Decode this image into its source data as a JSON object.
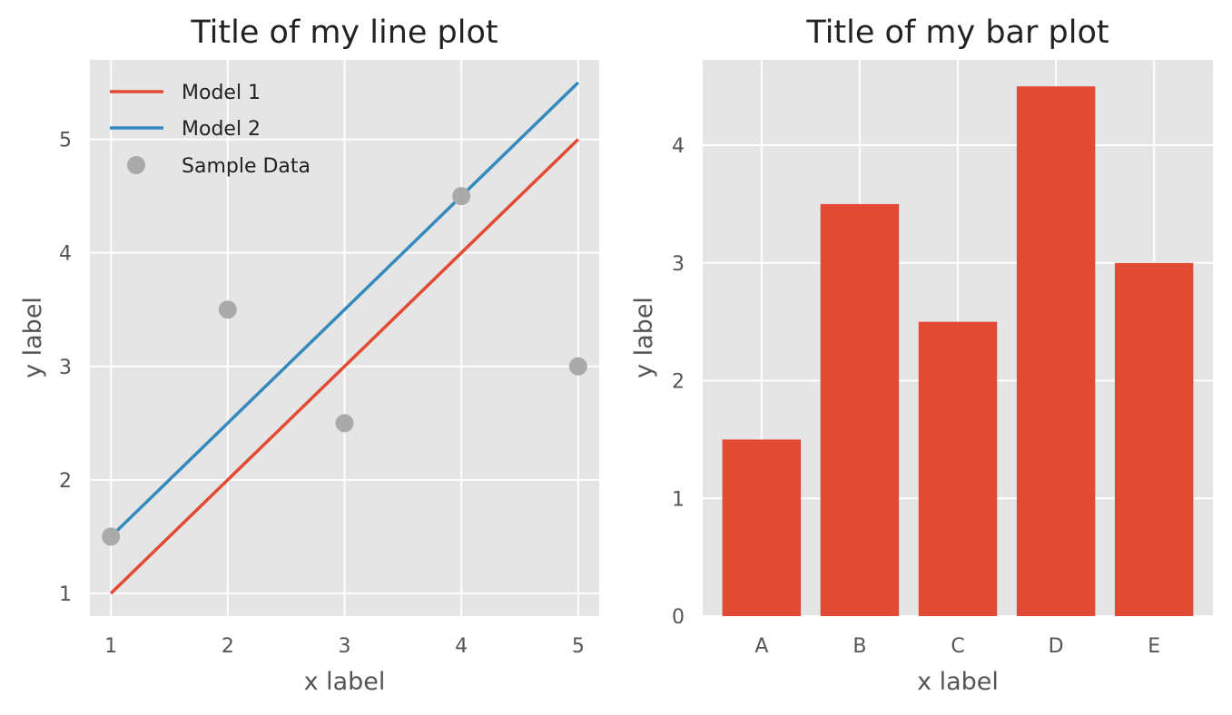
{
  "chart_data": [
    {
      "type": "line",
      "title": "Title of my line plot",
      "xlabel": "x label",
      "ylabel": "y label",
      "xlim": [
        0.82,
        5.18
      ],
      "ylim": [
        0.8,
        5.7
      ],
      "xticks": [
        1,
        2,
        3,
        4,
        5
      ],
      "yticks": [
        1,
        2,
        3,
        4,
        5
      ],
      "grid": true,
      "legend_position": "top-left",
      "series": [
        {
          "name": "Model 1",
          "kind": "line",
          "color": "#e24a33",
          "x": [
            1,
            5
          ],
          "y": [
            1,
            5
          ]
        },
        {
          "name": "Model 2",
          "kind": "line",
          "color": "#348abd",
          "x": [
            1,
            5
          ],
          "y": [
            1.5,
            5.5
          ]
        },
        {
          "name": "Sample Data",
          "kind": "scatter",
          "color": "#aaaaaa",
          "x": [
            1,
            2,
            3,
            4,
            5
          ],
          "y": [
            1.5,
            3.5,
            2.5,
            4.5,
            3.0
          ]
        }
      ]
    },
    {
      "type": "bar",
      "title": "Title of my bar plot",
      "xlabel": "x label",
      "ylabel": "y label",
      "categories": [
        "A",
        "B",
        "C",
        "D",
        "E"
      ],
      "values": [
        1.5,
        3.5,
        2.5,
        4.5,
        3.0
      ],
      "color": "#e24a33",
      "ylim": [
        0,
        4.725
      ],
      "yticks": [
        0,
        1,
        2,
        3,
        4
      ],
      "grid": true
    }
  ]
}
